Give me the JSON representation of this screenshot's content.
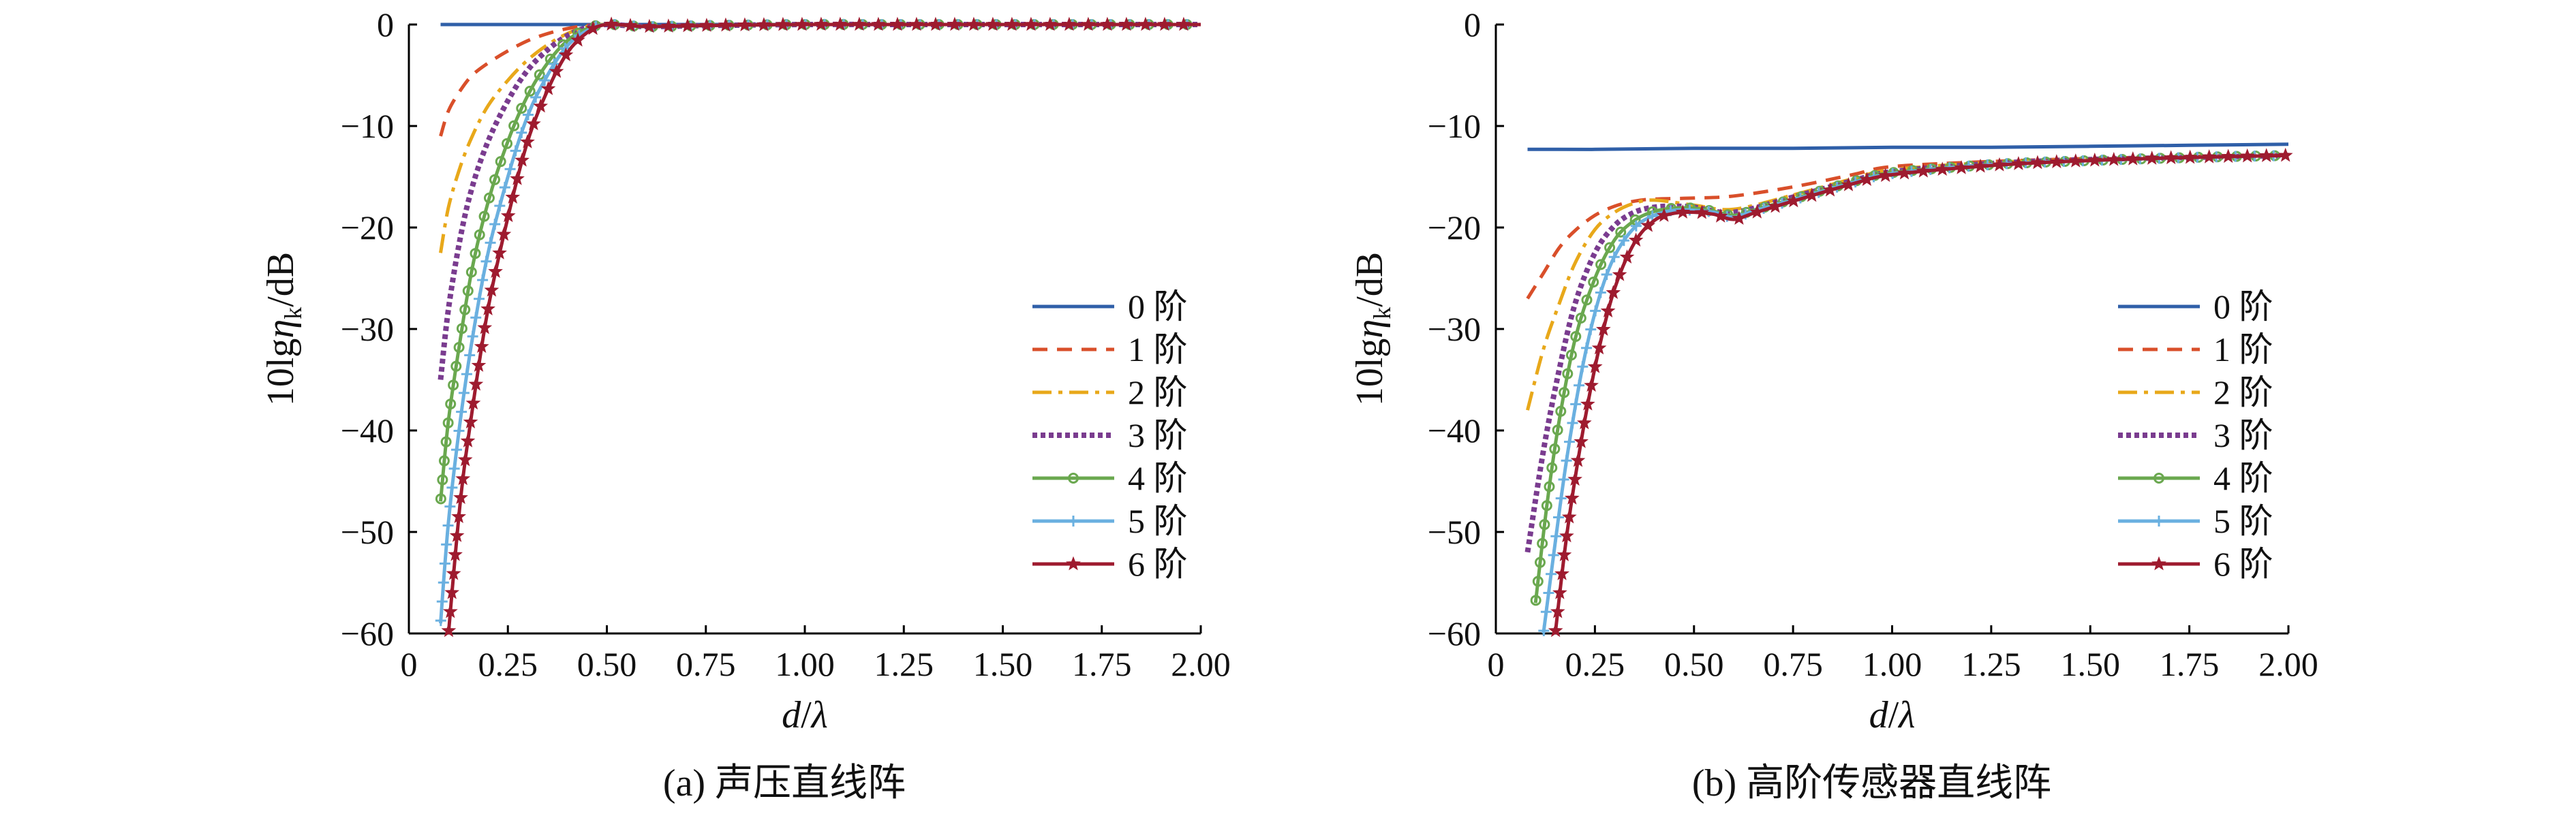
{
  "chart_data": [
    {
      "type": "line",
      "caption": "(a) 声压直线阵",
      "xlabel_var": "d",
      "xlabel_den": "λ",
      "ylabel_pre": "10lg",
      "ylabel_var": "η",
      "ylabel_sub": "k",
      "ylabel_post": "/dB",
      "xlim": [
        0,
        2.0
      ],
      "ylim": [
        -60,
        0
      ],
      "xticks": [
        "0",
        "0.25",
        "0.50",
        "0.75",
        "1.00",
        "1.25",
        "1.50",
        "1.75",
        "2.00"
      ],
      "yticks": [
        "0",
        "−10",
        "−20",
        "−30",
        "−40",
        "−50",
        "−60"
      ],
      "legend": "right",
      "series": [
        {
          "name": "0 阶",
          "color": "#2f5fa8",
          "dash": "none",
          "marker": "none",
          "x": [
            0.08,
            0.2,
            0.35,
            0.5,
            0.75,
            1.0,
            1.25,
            1.5,
            1.75,
            2.0
          ],
          "y": [
            0,
            0,
            0,
            0,
            0,
            0,
            0,
            0,
            0,
            0
          ]
        },
        {
          "name": "1 阶",
          "color": "#d94f2a",
          "dash": "22,14",
          "marker": "none",
          "x": [
            0.08,
            0.1,
            0.13,
            0.16,
            0.2,
            0.25,
            0.3,
            0.35,
            0.4,
            0.45,
            0.5,
            0.6,
            0.75,
            1.0,
            1.25,
            1.5,
            1.75,
            2.0
          ],
          "y": [
            -11,
            -8.5,
            -6.5,
            -5,
            -3.8,
            -2.6,
            -1.6,
            -0.9,
            -0.4,
            -0.1,
            0,
            -0.2,
            -0.1,
            0,
            0,
            0,
            0,
            0
          ]
        },
        {
          "name": "2 阶",
          "color": "#e8a81a",
          "dash": "28,10,6,10",
          "marker": "none",
          "x": [
            0.08,
            0.1,
            0.13,
            0.16,
            0.2,
            0.25,
            0.3,
            0.35,
            0.4,
            0.45,
            0.5,
            0.6,
            0.75,
            1.0,
            1.25,
            1.5,
            1.75,
            2.0
          ],
          "y": [
            -22.5,
            -18,
            -14,
            -11,
            -8,
            -5.5,
            -3.5,
            -2,
            -0.9,
            -0.2,
            0,
            -0.2,
            -0.1,
            0,
            0,
            0,
            0,
            0
          ]
        },
        {
          "name": "3 阶",
          "color": "#7a3c8f",
          "dash": "7,5",
          "marker": "none",
          "x": [
            0.08,
            0.1,
            0.13,
            0.16,
            0.2,
            0.25,
            0.3,
            0.35,
            0.4,
            0.45,
            0.5,
            0.6,
            0.75,
            1.0,
            1.25,
            1.5,
            1.75,
            2.0
          ],
          "y": [
            -35,
            -28,
            -21,
            -16,
            -11.5,
            -7.5,
            -4.5,
            -2.5,
            -1.1,
            -0.3,
            0,
            -0.2,
            -0.1,
            0,
            0,
            0,
            0,
            0
          ]
        },
        {
          "name": "4 阶",
          "color": "#6aa84f",
          "dash": "none",
          "marker": "circle",
          "x": [
            0.08,
            0.1,
            0.13,
            0.16,
            0.2,
            0.25,
            0.3,
            0.35,
            0.4,
            0.45,
            0.5,
            0.6,
            0.75,
            1.0,
            1.25,
            1.5,
            1.75,
            2.0
          ],
          "y": [
            -47,
            -39,
            -31,
            -24,
            -17.5,
            -11.5,
            -7,
            -3.8,
            -1.6,
            -0.4,
            0,
            -0.2,
            -0.1,
            0,
            0,
            0,
            0,
            0
          ]
        },
        {
          "name": "5 阶",
          "color": "#6ab0e0",
          "dash": "none",
          "marker": "plus",
          "x": [
            0.08,
            0.1,
            0.13,
            0.16,
            0.2,
            0.25,
            0.3,
            0.35,
            0.4,
            0.45,
            0.5,
            0.6,
            0.75,
            1.0,
            1.25,
            1.5,
            1.75,
            2.0
          ],
          "y": [
            -59,
            -49,
            -39,
            -31,
            -22.5,
            -15,
            -9,
            -5,
            -2.1,
            -0.6,
            0,
            -0.2,
            -0.1,
            0,
            0,
            0,
            0,
            0
          ]
        },
        {
          "name": "6 阶",
          "color": "#9e1b2f",
          "dash": "none",
          "marker": "star",
          "x": [
            0.1,
            0.13,
            0.16,
            0.2,
            0.25,
            0.3,
            0.35,
            0.4,
            0.45,
            0.5,
            0.6,
            0.75,
            1.0,
            1.25,
            1.5,
            1.75,
            2.0
          ],
          "y": [
            -60,
            -47,
            -38,
            -28,
            -19,
            -11.5,
            -6.5,
            -2.8,
            -0.8,
            0,
            -0.2,
            -0.1,
            0,
            0,
            0,
            0,
            0
          ]
        }
      ]
    },
    {
      "type": "line",
      "caption": "(b) 高阶传感器直线阵",
      "xlabel_var": "d",
      "xlabel_den": "λ",
      "ylabel_pre": "10lg",
      "ylabel_var": "η",
      "ylabel_sub": "k",
      "ylabel_post": "/dB",
      "xlim": [
        0,
        2.0
      ],
      "ylim": [
        -60,
        0
      ],
      "xticks": [
        "0",
        "0.25",
        "0.50",
        "0.75",
        "1.00",
        "1.25",
        "1.50",
        "1.75",
        "2.00"
      ],
      "yticks": [
        "0",
        "−10",
        "−20",
        "−30",
        "−40",
        "−50",
        "−60"
      ],
      "legend": "right",
      "series": [
        {
          "name": "0 阶",
          "color": "#2f5fa8",
          "dash": "none",
          "marker": "none",
          "x": [
            0.08,
            0.25,
            0.5,
            0.75,
            1.0,
            1.25,
            1.5,
            1.75,
            2.0
          ],
          "y": [
            -12.3,
            -12.3,
            -12.2,
            -12.2,
            -12.1,
            -12.1,
            -12.0,
            -11.9,
            -11.8
          ]
        },
        {
          "name": "1 阶",
          "color": "#d94f2a",
          "dash": "22,14",
          "marker": "none",
          "x": [
            0.08,
            0.12,
            0.16,
            0.2,
            0.25,
            0.3,
            0.35,
            0.4,
            0.5,
            0.6,
            0.75,
            0.9,
            1.0,
            1.25,
            1.5,
            1.75,
            2.0
          ],
          "y": [
            -27,
            -24.5,
            -22,
            -20.3,
            -18.8,
            -17.9,
            -17.4,
            -17.2,
            -17.1,
            -16.9,
            -16,
            -14.8,
            -14,
            -13.5,
            -13.2,
            -13,
            -12.8
          ]
        },
        {
          "name": "2 阶",
          "color": "#e8a81a",
          "dash": "28,10,6,10",
          "marker": "none",
          "x": [
            0.08,
            0.12,
            0.16,
            0.2,
            0.25,
            0.3,
            0.35,
            0.4,
            0.5,
            0.6,
            0.75,
            0.9,
            1.0,
            1.25,
            1.5,
            1.75,
            2.0
          ],
          "y": [
            -38,
            -32,
            -27.5,
            -23.5,
            -20.2,
            -18.5,
            -17.6,
            -17.3,
            -17.8,
            -18.2,
            -16.8,
            -15.2,
            -14.3,
            -13.6,
            -13.3,
            -13.1,
            -12.9
          ]
        },
        {
          "name": "3 阶",
          "color": "#7a3c8f",
          "dash": "7,5",
          "marker": "none",
          "x": [
            0.08,
            0.12,
            0.16,
            0.2,
            0.25,
            0.3,
            0.35,
            0.4,
            0.45,
            0.5,
            0.6,
            0.75,
            0.9,
            1.0,
            1.25,
            1.5,
            1.75,
            2.0
          ],
          "y": [
            -52,
            -42,
            -34,
            -27.5,
            -22.5,
            -19.8,
            -18.5,
            -18,
            -17.9,
            -18,
            -18.5,
            -17,
            -15.4,
            -14.5,
            -13.7,
            -13.3,
            -13.1,
            -12.9
          ]
        },
        {
          "name": "4 阶",
          "color": "#6aa84f",
          "dash": "none",
          "marker": "circle",
          "x": [
            0.1,
            0.13,
            0.16,
            0.2,
            0.25,
            0.3,
            0.35,
            0.4,
            0.45,
            0.5,
            0.55,
            0.6,
            0.65,
            0.75,
            0.9,
            1.0,
            1.25,
            1.5,
            1.75,
            2.0
          ],
          "y": [
            -57,
            -47,
            -39,
            -31,
            -25,
            -21.2,
            -19.3,
            -18.4,
            -18.1,
            -18.1,
            -18.4,
            -18.8,
            -18.3,
            -17.2,
            -15.5,
            -14.6,
            -13.8,
            -13.4,
            -13.1,
            -12.9
          ]
        },
        {
          "name": "5 阶",
          "color": "#6ab0e0",
          "dash": "none",
          "marker": "plus",
          "x": [
            0.12,
            0.15,
            0.18,
            0.22,
            0.26,
            0.3,
            0.35,
            0.4,
            0.45,
            0.5,
            0.55,
            0.6,
            0.65,
            0.75,
            0.9,
            1.0,
            1.25,
            1.5,
            1.75,
            2.0
          ],
          "y": [
            -60,
            -51,
            -42.5,
            -33.5,
            -27,
            -22.8,
            -20,
            -18.8,
            -18.3,
            -18.3,
            -18.5,
            -19,
            -18.4,
            -17.3,
            -15.6,
            -14.7,
            -13.8,
            -13.4,
            -13.1,
            -12.9
          ]
        },
        {
          "name": "6 阶",
          "color": "#9e1b2f",
          "dash": "none",
          "marker": "star",
          "x": [
            0.15,
            0.18,
            0.22,
            0.26,
            0.3,
            0.35,
            0.4,
            0.45,
            0.5,
            0.55,
            0.6,
            0.65,
            0.75,
            0.9,
            1.0,
            1.25,
            1.5,
            1.75,
            2.0
          ],
          "y": [
            -60,
            -50,
            -40,
            -32,
            -26,
            -21.5,
            -19.3,
            -18.6,
            -18.5,
            -18.7,
            -19.2,
            -18.6,
            -17.4,
            -15.7,
            -14.8,
            -13.9,
            -13.4,
            -13.1,
            -12.9
          ]
        }
      ]
    }
  ]
}
